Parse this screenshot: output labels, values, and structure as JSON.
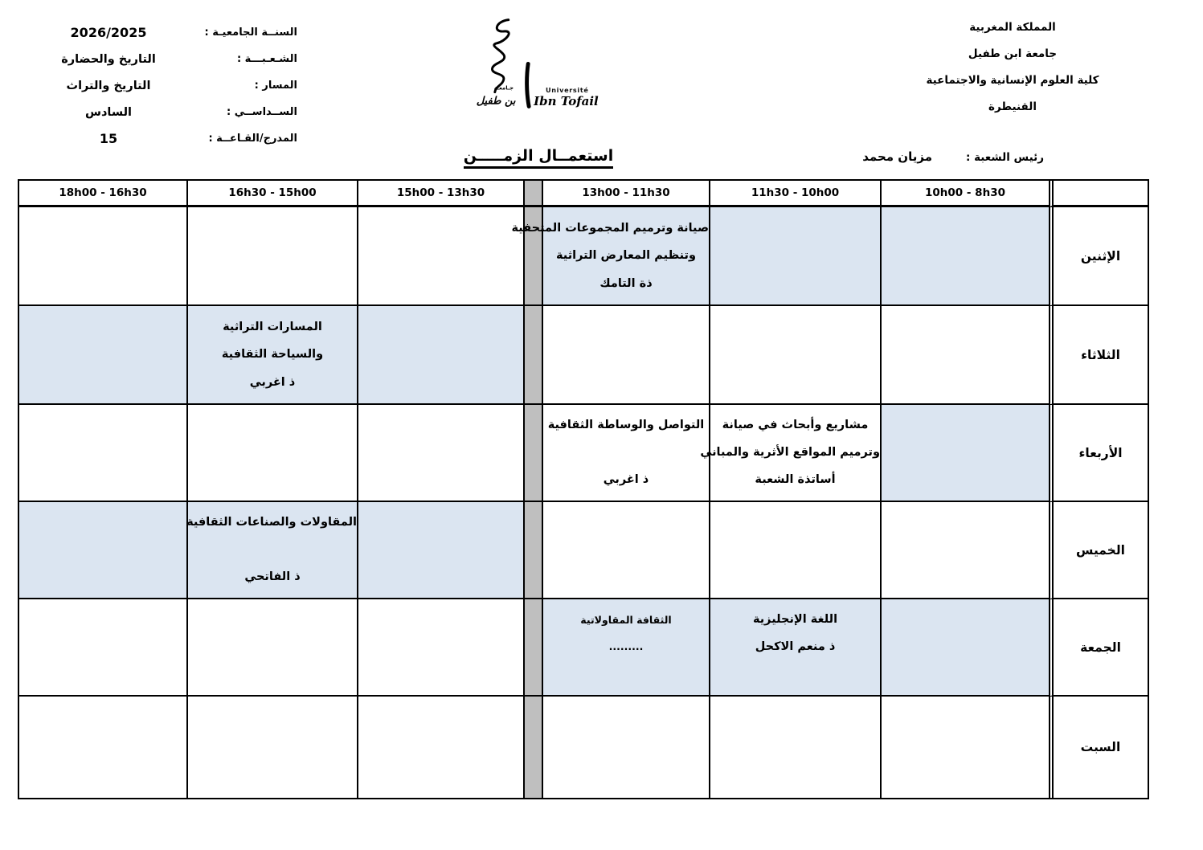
{
  "ministry_header": {
    "lines": [
      "المملكة المغربية",
      "جامعة ابن طفيل",
      "كلية العلوم الإنسانية والاجتماعية",
      "القنيطرة"
    ]
  },
  "info": {
    "rows": [
      {
        "label": "السنــة الجامعيـة :",
        "value": "2026/2025"
      },
      {
        "label": "الشـعـبـــة :",
        "value": "التاريخ والحضارة"
      },
      {
        "label": "المسار :",
        "value": "التاريخ والتراث"
      },
      {
        "label": "الســداســي :",
        "value": "السادس"
      },
      {
        "label": "المدرج/القـاعــة :",
        "value": "15"
      }
    ]
  },
  "logo": {
    "text_ar_small": "جـامعـة",
    "text_ar_script": "بن طفيل",
    "text_fr_top": "Université",
    "text_fr_script": "Ibn Tofail"
  },
  "title": "استعمــال الزمـــــن",
  "chief": {
    "label": "رئيس الشعبة :",
    "name": "مزيان محمد"
  },
  "colors": {
    "highlight": "#dbe5f1",
    "separator": "#bfbfbf",
    "border": "#000000"
  },
  "table": {
    "time_headers": [
      "18h00 - 16h30",
      "16h30 - 15h00",
      "15h00 - 13h30",
      "13h00 - 11h30",
      "11h30 - 10h00",
      "10h00 - 8h30"
    ],
    "days": [
      {
        "name": "الإثنين",
        "cells": [
          {
            "lines": [],
            "hl": false
          },
          {
            "lines": [],
            "hl": false
          },
          {
            "lines": [],
            "hl": false
          },
          {
            "lines": [
              "صيانة وترميم المجموعات المتحفية",
              "وتنظيم المعارض التراثية",
              "ذة التامك"
            ],
            "hl": true
          },
          {
            "lines": [],
            "hl": true
          },
          {
            "lines": [],
            "hl": true
          }
        ]
      },
      {
        "name": "الثلاثاء",
        "cells": [
          {
            "lines": [],
            "hl": true
          },
          {
            "lines": [
              "المسارات التراثية",
              "والسياحة الثقافية",
              "ذ اغربي"
            ],
            "hl": true
          },
          {
            "lines": [],
            "hl": true
          },
          {
            "lines": [],
            "hl": false
          },
          {
            "lines": [],
            "hl": false
          },
          {
            "lines": [],
            "hl": false
          }
        ]
      },
      {
        "name": "الأربعاء",
        "cells": [
          {
            "lines": [],
            "hl": false
          },
          {
            "lines": [],
            "hl": false
          },
          {
            "lines": [],
            "hl": false
          },
          {
            "lines": [
              "التواصل والوساطة الثقافية",
              "",
              "ذ اغربي"
            ],
            "hl": false
          },
          {
            "lines": [
              "مشاريع وأبحاث في صيانة",
              "وترميم المواقع الأثرية والمباني",
              "أساتذة الشعبة"
            ],
            "hl": false
          },
          {
            "lines": [],
            "hl": true
          }
        ]
      },
      {
        "name": "الخميس",
        "cells": [
          {
            "lines": [],
            "hl": true
          },
          {
            "lines": [
              "المقاولات والصناعات الثقافية",
              "",
              "ذ الفاتحي"
            ],
            "hl": true
          },
          {
            "lines": [],
            "hl": true
          },
          {
            "lines": [],
            "hl": false
          },
          {
            "lines": [],
            "hl": false
          },
          {
            "lines": [],
            "hl": false
          }
        ]
      },
      {
        "name": "الجمعة",
        "cells": [
          {
            "lines": [],
            "hl": false
          },
          {
            "lines": [],
            "hl": false
          },
          {
            "lines": [],
            "hl": false
          },
          {
            "lines": [
              "الثقافة المقاولاتية",
              ".........",
              ""
            ],
            "hl": true,
            "small": true
          },
          {
            "lines": [
              "اللغة  الإنجليزية",
              "ذ منعم الاكحل",
              ""
            ],
            "hl": true
          },
          {
            "lines": [],
            "hl": true
          }
        ]
      },
      {
        "name": "السبت",
        "cells": [
          {
            "lines": [],
            "hl": false
          },
          {
            "lines": [],
            "hl": false
          },
          {
            "lines": [],
            "hl": false
          },
          {
            "lines": [],
            "hl": false
          },
          {
            "lines": [],
            "hl": false
          },
          {
            "lines": [],
            "hl": false
          }
        ]
      }
    ]
  }
}
